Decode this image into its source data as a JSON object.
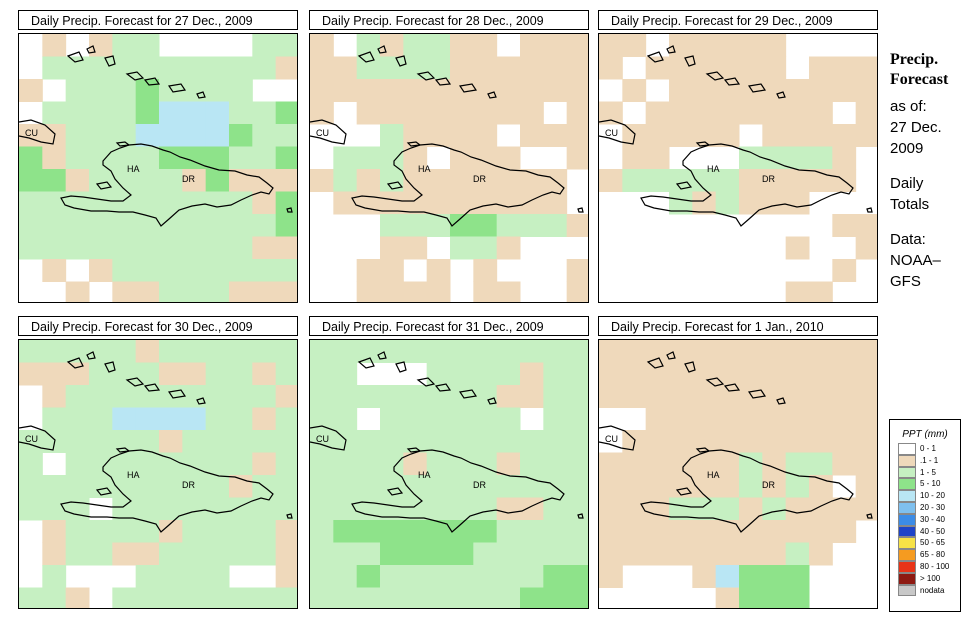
{
  "panels": [
    {
      "title": "Daily Precip. Forecast for  27 Dec., 2009",
      "grid": [
        "8.8.00888800",
        "80000000000.",
        ".80001000088",
        "800001333001",
        "..0003333100",
        "1.0000111001",
        "11.0000.1...",
        "0000000000.1",
        "000000000001",
        "0000000000..",
        "8.8.00000000",
        "88.8..000..."
      ]
    },
    {
      "title": "Daily Precip. Forecast for  28 Dec., 2009",
      "grid": [
        ".80.00..8...",
        "..0000......",
        "............",
        ".8........8.",
        "8880....8...",
        "8000.8...88.",
        ".0.0.......8",
        "8..........8",
        "88800011000.",
        "888..800.888",
        "88..8.8.888.",
        "88....8..88."
      ]
    },
    {
      "title": "Daily Precip. Forecast for  29 Dec., 2009",
      "grid": [
        "..8.....8888",
        ".8......8...",
        "8.8.........",
        ".8........8.",
        "8.....8.....",
        "8..8880000.8",
        ".00000.....8",
        "8880.0...888",
        "8888888888..",
        "88888888.88.",
        "8888888888.8",
        "88888888..88"
      ]
    },
    {
      "title": "Daily Precip. Forecast for  30 Dec., 2009",
      "grid": [
        "00000.000000",
        "...000..00.0",
        "8.000000000.",
        "8000333300.0",
        "000000.00000",
        "0800000000.0",
        "000000000.00",
        "000800000000",
        "8.0000.0000.",
        "8.00..00000.",
        "80888000088.",
        "00.800000000"
      ]
    },
    {
      "title": "Daily Precip. Forecast for  31 Dec., 2009",
      "grid": [
        "000000000000",
        "008880000.00",
        "00000000..00",
        "008000000800",
        "000000000000",
        "0000.000.000",
        "000000000000",
        "00000000..00",
        "011111110000",
        "000111100000",
        "001000000011",
        "000000000111"
      ]
    },
    {
      "title": "Daily Precip. Forecast for  1 Jan., 2010",
      "grid": [
        "............",
        "............",
        "............",
        "88..........",
        "8...........",
        "......0.00..",
        "......0.0.8.",
        "...000.0....",
        "...........8",
        "........0.88",
        ".888.3111888",
        "88888.111888"
      ]
    }
  ],
  "places": {
    "cuba": "CU",
    "haiti": "HA",
    "dominican_republic": "DR"
  },
  "side": {
    "title1": "Precip.",
    "title2": "Forecast",
    "asof": "as of:",
    "date1": "27 Dec.",
    "date2": "2009",
    "totals1": "Daily",
    "totals2": "Totals",
    "data1": "Data:",
    "data2": "NOAA–",
    "data3": "GFS"
  },
  "legend": {
    "title": "PPT (mm)",
    "items": [
      {
        "label": "0 - 1",
        "color": "#ffffff"
      },
      {
        "label": ".1 - 1",
        "color": "#efd9bb"
      },
      {
        "label": "1 - 5",
        "color": "#c6f0c2"
      },
      {
        "label": "5 - 10",
        "color": "#8ee38a"
      },
      {
        "label": "10 - 20",
        "color": "#b9e6f4"
      },
      {
        "label": "20 - 30",
        "color": "#7fc0ee"
      },
      {
        "label": "30 - 40",
        "color": "#3c8ce6"
      },
      {
        "label": "40 - 50",
        "color": "#1e44c8"
      },
      {
        "label": "50 - 65",
        "color": "#f7e246"
      },
      {
        "label": "65 - 80",
        "color": "#f59b20"
      },
      {
        "label": "80 - 100",
        "color": "#e83418"
      },
      {
        "label": "> 100",
        "color": "#8e1a12"
      },
      {
        "label": "nodata",
        "color": "#c8c8c8"
      }
    ]
  }
}
